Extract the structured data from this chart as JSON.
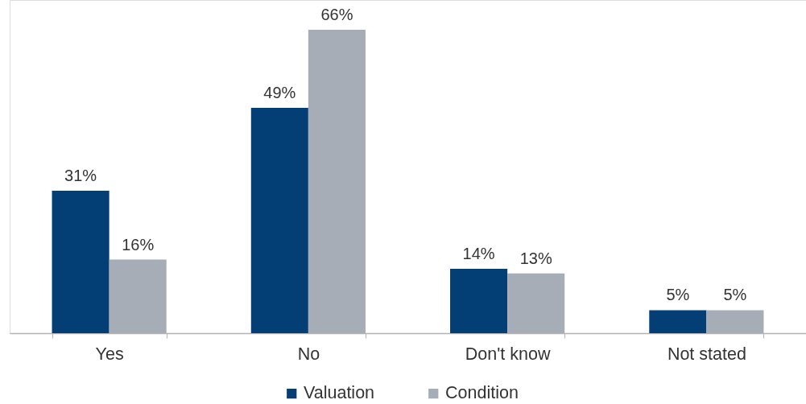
{
  "chart_data": {
    "type": "bar",
    "categories": [
      "Yes",
      "No",
      "Don't know",
      "Not stated"
    ],
    "series": [
      {
        "name": "Valuation",
        "color": "#033e74",
        "values": [
          31,
          49,
          14,
          5
        ],
        "value_labels": [
          "31%",
          "49%",
          "14%",
          "5%"
        ]
      },
      {
        "name": "Condition",
        "color": "#a6adb7",
        "values": [
          16,
          66,
          13,
          5
        ],
        "value_labels": [
          "16%",
          "66%",
          "13%",
          "5%"
        ]
      }
    ],
    "legend": "bottom"
  }
}
